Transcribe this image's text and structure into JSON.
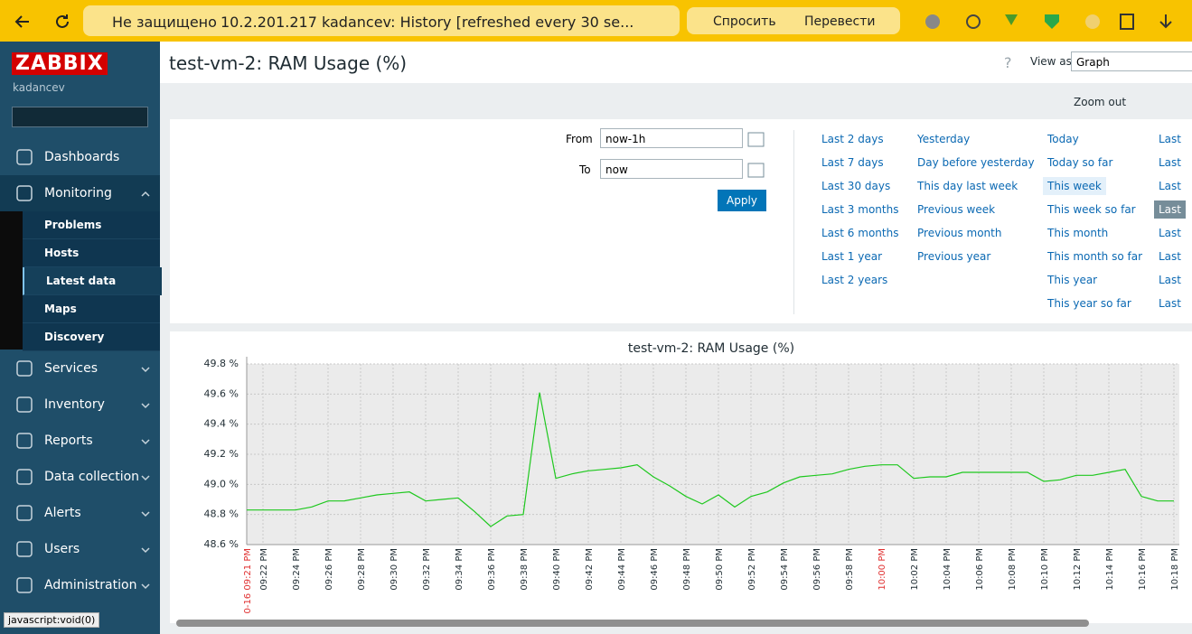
{
  "browser": {
    "security": "Не защищено",
    "address": "10.2.201.217",
    "tab_title": "kadancev: History [refreshed every 30 se...",
    "ask": "Спросить",
    "translate": "Перевести",
    "status": "javascript:void(0)"
  },
  "sidebar": {
    "logo": "ZABBIX",
    "user": "kadancev",
    "menu": [
      "Dashboards",
      "Monitoring",
      "Services",
      "Inventory",
      "Reports",
      "Data collection",
      "Alerts",
      "Users",
      "Administration"
    ],
    "submenu": [
      "Problems",
      "Hosts",
      "Latest data",
      "Maps",
      "Discovery"
    ]
  },
  "header": {
    "title": "test-vm-2: RAM Usage (%)",
    "help": "?",
    "view_as": "View as",
    "view_mode": "Graph",
    "zoom_out": "Zoom out"
  },
  "filter": {
    "from_label": "From",
    "from": "now-1h",
    "to_label": "To",
    "to": "now",
    "apply": "Apply",
    "ranges": [
      [
        "Last 2 days",
        "Last 7 days",
        "Last 30 days",
        "Last 3 months",
        "Last 6 months",
        "Last 1 year",
        "Last 2 years"
      ],
      [
        "Yesterday",
        "Day before yesterday",
        "This day last week",
        "Previous week",
        "Previous month",
        "Previous year"
      ],
      [
        "Today",
        "Today so far",
        "This week",
        "This week so far",
        "This month",
        "This month so far",
        "This year",
        "This year so far"
      ],
      [
        "Last",
        "Last",
        "Last",
        "Last",
        "Last",
        "Last",
        "Last",
        "Last"
      ]
    ]
  },
  "chart_data": {
    "type": "line",
    "title": "test-vm-2: RAM Usage (%)",
    "color": "#1ec81e",
    "grid": true,
    "categories": [
      "0-16 09:21 PM",
      "09:22 PM",
      null,
      "09:24 PM",
      null,
      "09:26 PM",
      null,
      "09:28 PM",
      null,
      "09:30 PM",
      null,
      "09:32 PM",
      null,
      "09:34 PM",
      null,
      "09:36 PM",
      null,
      "09:38 PM",
      null,
      "09:40 PM",
      null,
      "09:42 PM",
      null,
      "09:44 PM",
      null,
      "09:46 PM",
      null,
      "09:48 PM",
      null,
      "09:50 PM",
      null,
      "09:52 PM",
      null,
      "09:54 PM",
      null,
      "09:56 PM",
      null,
      "09:58 PM",
      null,
      "10:00 PM",
      null,
      "10:02 PM",
      null,
      "10:04 PM",
      null,
      "10:06 PM",
      null,
      "10:08 PM",
      null,
      "10:10 PM",
      null,
      "10:12 PM",
      null,
      "10:14 PM",
      null,
      "10:16 PM",
      null,
      "10:18 PM"
    ],
    "highlighted_categories": [
      "0-16 09:21 PM",
      "10:00 PM"
    ],
    "highlight_color": "#e03030",
    "values": [
      48.83,
      48.83,
      48.83,
      48.83,
      48.85,
      48.89,
      48.89,
      48.91,
      48.93,
      48.94,
      48.95,
      48.89,
      48.9,
      48.91,
      48.82,
      48.72,
      48.79,
      48.8,
      49.61,
      49.04,
      49.07,
      49.09,
      49.1,
      49.11,
      49.13,
      49.05,
      48.99,
      48.92,
      48.87,
      48.93,
      48.85,
      48.92,
      48.95,
      49.01,
      49.05,
      49.06,
      49.07,
      49.1,
      49.12,
      49.13,
      49.13,
      49.04,
      49.05,
      49.05,
      49.08,
      49.08,
      49.08,
      49.08,
      49.08,
      49.02,
      49.03,
      49.06,
      49.06,
      49.08,
      49.1,
      48.92,
      48.89,
      48.89
    ],
    "ylim": [
      48.6,
      49.8
    ],
    "yticks": [
      {
        "value": 48.6,
        "label": "48.6 %"
      },
      {
        "value": 48.8,
        "label": "48.8 %"
      },
      {
        "value": 49.0,
        "label": "49.0 %"
      },
      {
        "value": 49.2,
        "label": "49.2 %"
      },
      {
        "value": 49.4,
        "label": "49.4 %"
      },
      {
        "value": 49.6,
        "label": "49.6 %"
      },
      {
        "value": 49.8,
        "label": "49.8 %"
      }
    ]
  }
}
